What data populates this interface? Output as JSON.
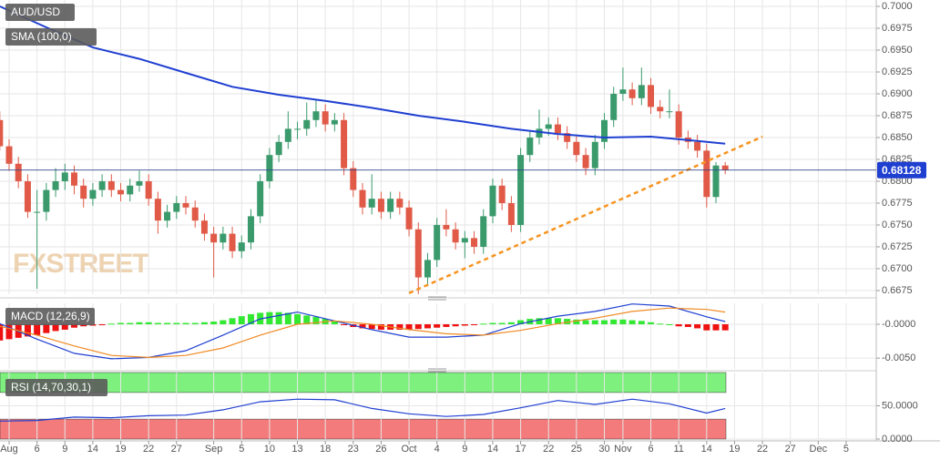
{
  "chart_data": [
    {
      "type": "candlestick",
      "title": "AUD/USD",
      "watermark": "FXSTREET",
      "xlim": [
        0.02,
        94.04
      ],
      "ylim": [
        0.66708,
        0.70073
      ],
      "grid": true,
      "up_color": "#3a9a6c",
      "down_color": "#e05a47",
      "yticks": [
        {
          "value": 0.7,
          "label": "0.7000"
        },
        {
          "value": 0.6975,
          "label": "0.6975"
        },
        {
          "value": 0.695,
          "label": "0.6950"
        },
        {
          "value": 0.6925,
          "label": "0.6925"
        },
        {
          "value": 0.69,
          "label": "0.6900"
        },
        {
          "value": 0.6875,
          "label": "0.6875"
        },
        {
          "value": 0.685,
          "label": "0.6850"
        },
        {
          "value": 0.6825,
          "label": "0.6825"
        },
        {
          "value": 0.68,
          "label": "0.6800"
        },
        {
          "value": 0.6775,
          "label": "0.6775"
        },
        {
          "value": 0.675,
          "label": "0.6750"
        },
        {
          "value": 0.6725,
          "label": "0.6725"
        },
        {
          "value": 0.67,
          "label": "0.6700"
        },
        {
          "value": 0.6675,
          "label": "0.6675"
        }
      ],
      "ohlc": [
        [
          0.687,
          0.688,
          0.6835,
          0.684
        ],
        [
          0.684,
          0.6848,
          0.6812,
          0.682
        ],
        [
          0.682,
          0.6828,
          0.6792,
          0.68
        ],
        [
          0.68,
          0.6808,
          0.6758,
          0.6765
        ],
        [
          0.6765,
          0.679,
          0.6677,
          0.6765
        ],
        [
          0.6765,
          0.6798,
          0.6755,
          0.679
        ],
        [
          0.679,
          0.6815,
          0.6782,
          0.68
        ],
        [
          0.68,
          0.682,
          0.679,
          0.681
        ],
        [
          0.681,
          0.6818,
          0.6785,
          0.6795
        ],
        [
          0.6795,
          0.6803,
          0.677,
          0.678
        ],
        [
          0.678,
          0.6798,
          0.6772,
          0.679
        ],
        [
          0.679,
          0.6808,
          0.6782,
          0.68
        ],
        [
          0.68,
          0.6808,
          0.6782,
          0.679
        ],
        [
          0.679,
          0.6798,
          0.6777,
          0.6785
        ],
        [
          0.6785,
          0.6803,
          0.6777,
          0.6795
        ],
        [
          0.6795,
          0.6812,
          0.6788,
          0.68
        ],
        [
          0.68,
          0.6808,
          0.6772,
          0.678
        ],
        [
          0.678,
          0.6788,
          0.674,
          0.6755
        ],
        [
          0.6755,
          0.6773,
          0.6747,
          0.6765
        ],
        [
          0.6765,
          0.6783,
          0.6757,
          0.6775
        ],
        [
          0.6775,
          0.6783,
          0.6762,
          0.677
        ],
        [
          0.677,
          0.6778,
          0.6747,
          0.6755
        ],
        [
          0.6755,
          0.6763,
          0.6732,
          0.674
        ],
        [
          0.674,
          0.6748,
          0.669,
          0.673
        ],
        [
          0.673,
          0.6748,
          0.6722,
          0.674
        ],
        [
          0.674,
          0.6748,
          0.6712,
          0.672
        ],
        [
          0.672,
          0.6738,
          0.6712,
          0.673
        ],
        [
          0.673,
          0.6768,
          0.6722,
          0.676
        ],
        [
          0.676,
          0.6808,
          0.6752,
          0.68
        ],
        [
          0.68,
          0.6838,
          0.6792,
          0.683
        ],
        [
          0.683,
          0.6853,
          0.6822,
          0.6845
        ],
        [
          0.6845,
          0.688,
          0.6837,
          0.686
        ],
        [
          0.686,
          0.6868,
          0.6848,
          0.686
        ],
        [
          0.686,
          0.689,
          0.6852,
          0.687
        ],
        [
          0.687,
          0.6893,
          0.6862,
          0.688
        ],
        [
          0.688,
          0.6888,
          0.6857,
          0.6865
        ],
        [
          0.6865,
          0.6878,
          0.6857,
          0.687
        ],
        [
          0.687,
          0.6878,
          0.6807,
          0.6815
        ],
        [
          0.6815,
          0.6823,
          0.6782,
          0.679
        ],
        [
          0.679,
          0.6798,
          0.6762,
          0.677
        ],
        [
          0.677,
          0.6808,
          0.6762,
          0.678
        ],
        [
          0.678,
          0.6788,
          0.6757,
          0.6765
        ],
        [
          0.6765,
          0.6788,
          0.6757,
          0.678
        ],
        [
          0.678,
          0.6788,
          0.6762,
          0.677
        ],
        [
          0.677,
          0.6778,
          0.6737,
          0.6745
        ],
        [
          0.6745,
          0.6753,
          0.6671,
          0.669
        ],
        [
          0.669,
          0.6718,
          0.6682,
          0.671
        ],
        [
          0.671,
          0.6758,
          0.6702,
          0.675
        ],
        [
          0.675,
          0.6768,
          0.6737,
          0.6745
        ],
        [
          0.6745,
          0.6753,
          0.6722,
          0.673
        ],
        [
          0.673,
          0.6743,
          0.6712,
          0.6735
        ],
        [
          0.6735,
          0.6743,
          0.6717,
          0.6725
        ],
        [
          0.6725,
          0.6768,
          0.6717,
          0.676
        ],
        [
          0.676,
          0.6803,
          0.6752,
          0.6795
        ],
        [
          0.6795,
          0.6803,
          0.6767,
          0.6775
        ],
        [
          0.6775,
          0.6783,
          0.6742,
          0.675
        ],
        [
          0.675,
          0.6838,
          0.6742,
          0.683
        ],
        [
          0.683,
          0.6858,
          0.6822,
          0.685
        ],
        [
          0.685,
          0.6882,
          0.6842,
          0.686
        ],
        [
          0.686,
          0.6873,
          0.6852,
          0.6865
        ],
        [
          0.6865,
          0.6873,
          0.6847,
          0.6855
        ],
        [
          0.6855,
          0.6863,
          0.6837,
          0.6845
        ],
        [
          0.6845,
          0.6853,
          0.6822,
          0.683
        ],
        [
          0.683,
          0.6838,
          0.6807,
          0.6815
        ],
        [
          0.6815,
          0.6853,
          0.6807,
          0.6845
        ],
        [
          0.6845,
          0.6878,
          0.6837,
          0.687
        ],
        [
          0.687,
          0.6908,
          0.6862,
          0.69
        ],
        [
          0.69,
          0.693,
          0.6892,
          0.6905
        ],
        [
          0.6905,
          0.6913,
          0.6887,
          0.6895
        ],
        [
          0.6895,
          0.693,
          0.6887,
          0.691
        ],
        [
          0.691,
          0.6918,
          0.6877,
          0.6885
        ],
        [
          0.6885,
          0.6893,
          0.6872,
          0.688
        ],
        [
          0.688,
          0.6905,
          0.6872,
          0.688
        ],
        [
          0.688,
          0.6888,
          0.6842,
          0.685
        ],
        [
          0.685,
          0.6858,
          0.6837,
          0.6845
        ],
        [
          0.6845,
          0.6853,
          0.6827,
          0.6835
        ],
        [
          0.6835,
          0.6843,
          0.677,
          0.6782
        ],
        [
          0.6782,
          0.6822,
          0.6775,
          0.6818
        ],
        [
          0.6818,
          0.6822,
          0.6808,
          0.6813
        ]
      ],
      "series": [
        {
          "name": "SMA (100,0)",
          "color": "#1f3fd1",
          "x": [
            0,
            5,
            10,
            15,
            20,
            25,
            30,
            35,
            40,
            45,
            50,
            55,
            60,
            65,
            70,
            75,
            78
          ],
          "values": [
            0.7,
            0.6976,
            0.6953,
            0.694,
            0.6924,
            0.6908,
            0.6899,
            0.6892,
            0.6884,
            0.6875,
            0.6868,
            0.686,
            0.6854,
            0.685,
            0.6851,
            0.6846,
            0.6843
          ]
        }
      ],
      "trendline": {
        "color": "#f7931e",
        "x": [
          44,
          82
        ],
        "values": [
          0.6672,
          0.6851
        ]
      },
      "last_price": {
        "value": 0.68128,
        "label": "0.68128",
        "color": "#1f3fd1"
      }
    },
    {
      "type": "macd",
      "title": "MACD (12,26,9)",
      "xlim": [
        0.02,
        94.04
      ],
      "ylim": [
        -0.0066,
        0.0031
      ],
      "grid": true,
      "up_color": "#33e833",
      "down_color": "#ee1111",
      "yticks": [
        {
          "value": 0,
          "label": "-0.0000"
        },
        {
          "value": -0.005,
          "label": "-0.0050"
        }
      ],
      "histogram": [
        -0.0024,
        -0.0022,
        -0.002,
        -0.0018,
        -0.0016,
        -0.0013,
        -0.001,
        -0.0008,
        -0.0005,
        -0.0003,
        -0.0002,
        -0.0001,
        0.0001,
        0.0002,
        0.0002,
        0.0003,
        0.0003,
        0.0002,
        0.0002,
        0.0002,
        0.0002,
        0.0002,
        0.0003,
        0.0004,
        0.0006,
        0.0009,
        0.0012,
        0.0015,
        0.0017,
        0.0018,
        0.0018,
        0.0017,
        0.0015,
        0.0013,
        0.0011,
        0.0008,
        0.0004,
        -0.0001,
        -0.0004,
        -0.0006,
        -0.0007,
        -0.0008,
        -0.0008,
        -0.0008,
        -0.0008,
        -0.0007,
        -0.0006,
        -0.0005,
        -0.0004,
        -0.0003,
        -0.0002,
        -0.0001,
        0.0001,
        0.0002,
        0.0002,
        0.0003,
        0.0006,
        0.0008,
        0.0009,
        0.0009,
        0.0009,
        0.0008,
        0.0007,
        0.0006,
        0.0006,
        0.0006,
        0.0007,
        0.0007,
        0.0006,
        0.0005,
        0.0003,
        0.0001,
        0,
        -0.0003,
        -0.0004,
        -0.0006,
        -0.0009,
        -0.0009,
        -0.0009
      ],
      "lines": [
        {
          "color": "#1f3fd1",
          "x": [
            0,
            4,
            8,
            12,
            16,
            20,
            24,
            28,
            32,
            36,
            40,
            44,
            48,
            52,
            56,
            60,
            64,
            68,
            72,
            76,
            78
          ],
          "values": [
            0.0001,
            -0.0022,
            -0.0043,
            -0.0051,
            -0.0049,
            -0.0039,
            -0.0016,
            0.0008,
            0.0018,
            0.0005,
            -0.0008,
            -0.0019,
            -0.0019,
            -0.0016,
            0.0001,
            0.0012,
            0.0019,
            0.003,
            0.0027,
            0.0011,
            0.0004
          ]
        },
        {
          "color": "#f08a24",
          "x": [
            0,
            4,
            8,
            12,
            16,
            20,
            24,
            28,
            32,
            36,
            40,
            44,
            48,
            52,
            56,
            60,
            64,
            68,
            72,
            76,
            78
          ],
          "values": [
            -0.0003,
            -0.0016,
            -0.0032,
            -0.0046,
            -0.0049,
            -0.0046,
            -0.0035,
            -0.0016,
            0,
            0.0005,
            0,
            -0.0008,
            -0.0014,
            -0.0016,
            -0.0009,
            0.0001,
            0.0009,
            0.0019,
            0.0024,
            0.0022,
            0.0018
          ]
        }
      ]
    },
    {
      "type": "line",
      "title": "RSI (14,70,30,1)",
      "xlim": [
        0.02,
        94.04
      ],
      "ylim": [
        0,
        100
      ],
      "grid": true,
      "yticks": [
        {
          "value": 50,
          "label": "50.0000"
        },
        {
          "value": 0,
          "label": "0.0000"
        }
      ],
      "bands": [
        {
          "from": 70,
          "to": 100,
          "color": "#7ef07e"
        },
        {
          "from": 0,
          "to": 30,
          "color": "#f47b7b"
        }
      ],
      "lines": [
        {
          "color": "#1f3fd1",
          "x": [
            0,
            4,
            8,
            12,
            16,
            20,
            24,
            28,
            32,
            36,
            40,
            44,
            48,
            52,
            56,
            60,
            64,
            68,
            72,
            76,
            78
          ],
          "values": [
            27,
            28,
            33,
            32,
            35,
            36,
            44,
            56,
            60,
            59,
            46,
            38,
            34,
            37,
            47,
            58,
            52,
            60,
            53,
            39,
            46
          ]
        }
      ],
      "xticks": [
        {
          "value": 1,
          "label": "Aug"
        },
        {
          "value": 4,
          "label": "6"
        },
        {
          "value": 7,
          "label": "9"
        },
        {
          "value": 10,
          "label": "14"
        },
        {
          "value": 13,
          "label": "19"
        },
        {
          "value": 16,
          "label": "22"
        },
        {
          "value": 19,
          "label": "27"
        },
        {
          "value": 23,
          "label": "Sep"
        },
        {
          "value": 26,
          "label": "5"
        },
        {
          "value": 29,
          "label": "10"
        },
        {
          "value": 32,
          "label": "13"
        },
        {
          "value": 35,
          "label": "18"
        },
        {
          "value": 38,
          "label": "23"
        },
        {
          "value": 41,
          "label": "26"
        },
        {
          "value": 44,
          "label": "Oct"
        },
        {
          "value": 47,
          "label": "4"
        },
        {
          "value": 50,
          "label": "9"
        },
        {
          "value": 53,
          "label": "14"
        },
        {
          "value": 56,
          "label": "17"
        },
        {
          "value": 59,
          "label": "22"
        },
        {
          "value": 62,
          "label": "25"
        },
        {
          "value": 65,
          "label": "30"
        },
        {
          "value": 67,
          "label": "Nov"
        },
        {
          "value": 70,
          "label": "6"
        },
        {
          "value": 73,
          "label": "11"
        },
        {
          "value": 76,
          "label": "14"
        },
        {
          "value": 79,
          "label": "19"
        },
        {
          "value": 82,
          "label": "22"
        },
        {
          "value": 85,
          "label": "27"
        },
        {
          "value": 88,
          "label": "Dec"
        },
        {
          "value": 91,
          "label": "5"
        }
      ]
    }
  ]
}
